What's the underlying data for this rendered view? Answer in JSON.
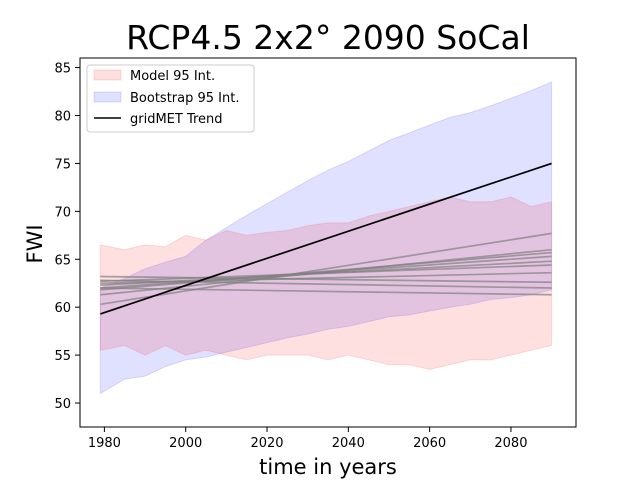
{
  "chart_data": {
    "type": "line",
    "title": "RCP4.5 2x2° 2090 SoCal",
    "xlabel": "time in years",
    "ylabel": "FWI",
    "xlim": [
      1974,
      2096
    ],
    "ylim": [
      47.5,
      86
    ],
    "xticks": [
      1980,
      2000,
      2020,
      2040,
      2060,
      2080
    ],
    "yticks": [
      50,
      55,
      60,
      65,
      70,
      75,
      80,
      85
    ],
    "grid": false,
    "legend_position": "top-left",
    "legend": [
      "Model 95 Int.",
      "Bootstrap 95 Int.",
      "gridMET Trend"
    ],
    "colors": {
      "model_band": "#ff0000",
      "bootstrap_band": "#0000ff",
      "gridmet_trend": "#000000",
      "model_lines": "#808080"
    },
    "series": [
      {
        "name": "Bootstrap 95 Int.",
        "kind": "band",
        "x": [
          1979,
          1985,
          1990,
          1995,
          2000,
          2005,
          2010,
          2015,
          2020,
          2025,
          2030,
          2035,
          2040,
          2045,
          2050,
          2055,
          2060,
          2065,
          2070,
          2075,
          2080,
          2085,
          2090
        ],
        "upper": [
          62.0,
          63.0,
          64.0,
          64.7,
          65.3,
          67.0,
          68.3,
          69.6,
          70.8,
          72.0,
          73.2,
          74.3,
          75.2,
          76.3,
          77.4,
          78.2,
          79.0,
          79.8,
          80.3,
          81.0,
          81.8,
          82.6,
          83.5
        ],
        "lower": [
          51.0,
          52.5,
          52.8,
          53.8,
          54.5,
          54.8,
          55.3,
          55.8,
          56.3,
          56.8,
          57.2,
          57.7,
          58.0,
          58.5,
          59.0,
          59.2,
          59.6,
          60.0,
          60.3,
          60.8,
          61.0,
          61.3,
          61.8
        ]
      },
      {
        "name": "Model 95 Int.",
        "kind": "band",
        "x": [
          1979,
          1985,
          1990,
          1995,
          2000,
          2005,
          2010,
          2015,
          2020,
          2025,
          2030,
          2035,
          2040,
          2045,
          2050,
          2055,
          2060,
          2065,
          2070,
          2075,
          2080,
          2085,
          2090
        ],
        "upper": [
          66.5,
          66.0,
          66.5,
          66.3,
          67.5,
          67.0,
          68.0,
          67.5,
          67.8,
          68.0,
          68.5,
          68.8,
          68.8,
          69.5,
          70.0,
          70.5,
          71.0,
          71.5,
          71.0,
          71.0,
          71.5,
          70.5,
          71.0
        ],
        "lower": [
          55.5,
          56.0,
          55.0,
          56.0,
          55.0,
          55.5,
          55.0,
          54.5,
          55.0,
          55.0,
          55.0,
          54.5,
          55.0,
          54.5,
          54.0,
          54.0,
          53.5,
          54.0,
          54.5,
          54.5,
          55.0,
          55.5,
          56.0
        ]
      },
      {
        "name": "gridMET Trend",
        "kind": "line",
        "x": [
          1979,
          2090
        ],
        "y": [
          59.3,
          75.0
        ]
      },
      {
        "kind": "model-line",
        "x": [
          1979,
          2090
        ],
        "y": [
          60.3,
          67.7
        ]
      },
      {
        "kind": "model-line",
        "x": [
          1979,
          2090
        ],
        "y": [
          61.3,
          66.0
        ]
      },
      {
        "kind": "model-line",
        "x": [
          1979,
          2090
        ],
        "y": [
          61.8,
          65.7
        ]
      },
      {
        "kind": "model-line",
        "x": [
          1979,
          2090
        ],
        "y": [
          62.0,
          65.3
        ]
      },
      {
        "kind": "model-line",
        "x": [
          1979,
          2090
        ],
        "y": [
          62.3,
          64.8
        ]
      },
      {
        "kind": "model-line",
        "x": [
          1979,
          2090
        ],
        "y": [
          62.7,
          64.4
        ]
      },
      {
        "kind": "model-line",
        "x": [
          1979,
          2090
        ],
        "y": [
          62.5,
          63.6
        ]
      },
      {
        "kind": "model-line",
        "x": [
          1979,
          2090
        ],
        "y": [
          63.2,
          62.6
        ]
      },
      {
        "kind": "model-line",
        "x": [
          1979,
          2090
        ],
        "y": [
          62.0,
          61.3
        ]
      },
      {
        "kind": "model-line",
        "x": [
          1979,
          2090
        ],
        "y": [
          62.8,
          62.0
        ]
      }
    ]
  }
}
